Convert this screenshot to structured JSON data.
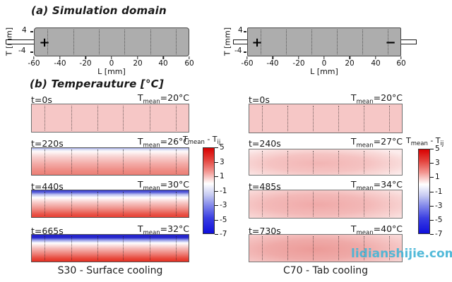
{
  "figure": {
    "panel_a": {
      "title": "(a) Simulation domain",
      "xlabel": "L [mm]",
      "ylabel": "T [mm]",
      "xticks": [
        "-60",
        "-40",
        "-20",
        "0",
        "20",
        "40",
        "60"
      ],
      "yticks": [
        "4",
        "-4"
      ],
      "left_domain": {
        "terminal_plus": "+"
      },
      "right_domain": {
        "terminal_plus": "+",
        "terminal_minus": "−"
      }
    },
    "panel_b": {
      "title": "(b) Temperauture [°C]",
      "tmean_T": "T",
      "tmean_sub": "mean",
      "left_column": {
        "caption": "S30 -  Surface cooling",
        "frames": [
          {
            "time": "t=0s",
            "tmean": "=20°C"
          },
          {
            "time": "t=220s",
            "tmean": "=26°C"
          },
          {
            "time": "t=440s",
            "tmean": "=30°C"
          },
          {
            "time": "t=665s",
            "tmean": "=32°C"
          }
        ]
      },
      "right_column": {
        "caption": "C70 - Tab cooling",
        "frames": [
          {
            "time": "t=0s",
            "tmean": "=20°C"
          },
          {
            "time": "t=240s",
            "tmean": "=27°C"
          },
          {
            "time": "t=485s",
            "tmean": "=34°C"
          },
          {
            "time": "t=730s",
            "tmean": "=40°C"
          }
        ]
      }
    },
    "colorbar": {
      "label_T1": "T",
      "label_sub1": "mean",
      "label_mid": " - T",
      "label_sub2": "ij",
      "ticks": [
        "5",
        "3",
        "1",
        "-1",
        "-3",
        "-5",
        "-7"
      ]
    },
    "watermark": "lidianshijie.com",
    "colors": {
      "domain_gray": "#adadad",
      "uniform_pink": "#f6c7c6",
      "hot_red": "#e42e21",
      "cold_blue": "#2121c9",
      "watermark_teal": "#45b5d6"
    }
  },
  "chart_data": [
    {
      "type": "heatmap",
      "title": "S30 -  Surface cooling",
      "x_axis": {
        "label": "L [mm]",
        "range": [
          -60,
          60
        ],
        "ticks": [
          -60,
          -40,
          -20,
          0,
          20,
          40,
          60
        ]
      },
      "y_axis": {
        "label": "T [mm]",
        "ticks": [
          4,
          -4
        ]
      },
      "colorbar": {
        "label": "T_mean - T_ij",
        "ticks": [
          5,
          3,
          1,
          -1,
          -3,
          -5,
          -7
        ],
        "range": [
          -7,
          5
        ],
        "colormap": "red-white-blue"
      },
      "terminals": {
        "plus_at_mm": -52
      },
      "frames": [
        {
          "time_s": 0,
          "t_mean_c": 20,
          "pattern": "uniform, delta near 0"
        },
        {
          "time_s": 220,
          "t_mean_c": 26,
          "pattern": "thin cooled (blue) top surface, warm (red) toward bottom"
        },
        {
          "time_s": 440,
          "t_mean_c": 30,
          "pattern": "stronger top-to-bottom gradient, blue band top, deep red bottom"
        },
        {
          "time_s": 665,
          "t_mean_c": 32,
          "pattern": "strongest gradient, dark blue top band, saturated red bottom"
        }
      ]
    },
    {
      "type": "heatmap",
      "title": "C70 - Tab cooling",
      "x_axis": {
        "label": "L [mm]",
        "range": [
          -60,
          60
        ],
        "ticks": [
          -60,
          -40,
          -20,
          0,
          20,
          40,
          60
        ]
      },
      "y_axis": {
        "label": "T [mm]",
        "ticks": [
          4,
          -4
        ]
      },
      "colorbar": {
        "label": "T_mean - T_ij",
        "ticks": [
          5,
          3,
          1,
          -1,
          -3,
          -5,
          -7
        ],
        "range": [
          -7,
          5
        ],
        "colormap": "red-white-blue"
      },
      "terminals": {
        "plus_at_mm": -52,
        "minus_at_mm": 52
      },
      "frames": [
        {
          "time_s": 0,
          "t_mean_c": 20,
          "pattern": "uniform, delta near 0"
        },
        {
          "time_s": 240,
          "t_mean_c": 27,
          "pattern": "slightly warmer center, cooler near tab ends"
        },
        {
          "time_s": 485,
          "t_mean_c": 34,
          "pattern": "warm central blob, pale edges"
        },
        {
          "time_s": 730,
          "t_mean_c": 40,
          "pattern": "warm center-left blob, cooler right tab end"
        }
      ]
    }
  ]
}
